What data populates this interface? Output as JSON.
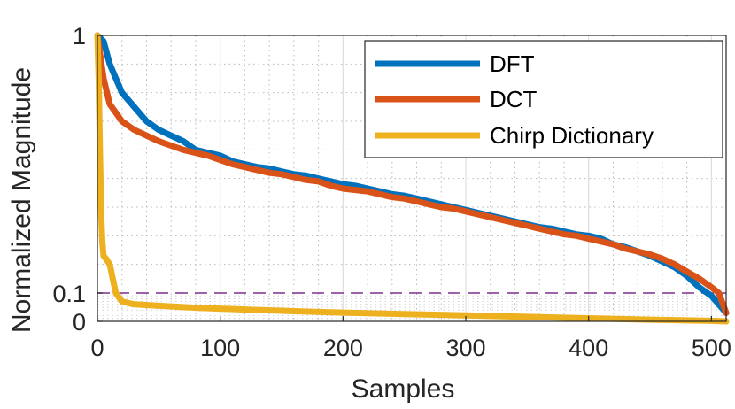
{
  "chart_data": {
    "type": "line",
    "xlabel": "Samples",
    "ylabel": "Normalized Magnitude",
    "xlim": [
      0,
      512
    ],
    "ylim": [
      0,
      1
    ],
    "xticks": [
      0,
      100,
      200,
      300,
      400,
      500
    ],
    "xtick_labels": [
      "0",
      "100",
      "200",
      "300",
      "400",
      "500"
    ],
    "yticks": [
      0,
      0.1,
      1
    ],
    "ytick_labels": [
      "0",
      "0.1",
      "1"
    ],
    "grid": true,
    "minor_grid": true,
    "reference_line": {
      "y": 0.1,
      "style": "dashed",
      "color": "#7E2F8E"
    },
    "legend_position": "top-right",
    "series": [
      {
        "name": "DFT",
        "color": "#0072BD",
        "x": [
          0,
          5,
          10,
          20,
          30,
          40,
          50,
          60,
          70,
          80,
          90,
          100,
          110,
          120,
          130,
          140,
          150,
          160,
          170,
          180,
          190,
          200,
          210,
          220,
          230,
          240,
          250,
          260,
          270,
          280,
          290,
          300,
          310,
          320,
          330,
          340,
          350,
          360,
          370,
          380,
          390,
          400,
          410,
          420,
          430,
          440,
          450,
          460,
          470,
          480,
          490,
          500,
          506,
          512
        ],
        "values": [
          1.0,
          0.98,
          0.9,
          0.8,
          0.75,
          0.7,
          0.67,
          0.65,
          0.63,
          0.6,
          0.59,
          0.58,
          0.56,
          0.55,
          0.54,
          0.535,
          0.525,
          0.515,
          0.51,
          0.5,
          0.49,
          0.48,
          0.475,
          0.465,
          0.455,
          0.445,
          0.44,
          0.43,
          0.42,
          0.41,
          0.4,
          0.39,
          0.38,
          0.37,
          0.36,
          0.35,
          0.34,
          0.33,
          0.325,
          0.315,
          0.305,
          0.3,
          0.29,
          0.27,
          0.26,
          0.245,
          0.23,
          0.21,
          0.19,
          0.16,
          0.12,
          0.09,
          0.06,
          0.03
        ]
      },
      {
        "name": "DCT",
        "color": "#D95319",
        "x": [
          0,
          5,
          10,
          20,
          30,
          40,
          50,
          60,
          70,
          80,
          90,
          100,
          110,
          120,
          130,
          140,
          150,
          160,
          170,
          180,
          190,
          200,
          210,
          220,
          230,
          240,
          250,
          260,
          270,
          280,
          290,
          300,
          310,
          320,
          330,
          340,
          350,
          360,
          370,
          380,
          390,
          400,
          410,
          420,
          430,
          440,
          450,
          460,
          470,
          480,
          490,
          500,
          506,
          512
        ],
        "values": [
          1.0,
          0.85,
          0.76,
          0.7,
          0.67,
          0.65,
          0.63,
          0.615,
          0.6,
          0.59,
          0.58,
          0.565,
          0.55,
          0.54,
          0.53,
          0.52,
          0.515,
          0.505,
          0.495,
          0.49,
          0.475,
          0.465,
          0.46,
          0.455,
          0.445,
          0.435,
          0.43,
          0.42,
          0.41,
          0.4,
          0.395,
          0.385,
          0.375,
          0.365,
          0.355,
          0.345,
          0.335,
          0.325,
          0.315,
          0.305,
          0.3,
          0.29,
          0.28,
          0.27,
          0.255,
          0.245,
          0.235,
          0.22,
          0.2,
          0.175,
          0.15,
          0.12,
          0.1,
          0.03
        ]
      },
      {
        "name": "Chirp Dictionary",
        "color": "#EDB120",
        "x": [
          0,
          1,
          2,
          3,
          4,
          5,
          7,
          10,
          15,
          20,
          30,
          50,
          80,
          120,
          160,
          200,
          250,
          300,
          350,
          400,
          450,
          500,
          512
        ],
        "values": [
          1.0,
          0.85,
          0.6,
          0.38,
          0.28,
          0.23,
          0.22,
          0.2,
          0.1,
          0.07,
          0.06,
          0.055,
          0.048,
          0.042,
          0.036,
          0.031,
          0.026,
          0.021,
          0.016,
          0.011,
          0.006,
          0.002,
          0.0
        ]
      }
    ]
  }
}
